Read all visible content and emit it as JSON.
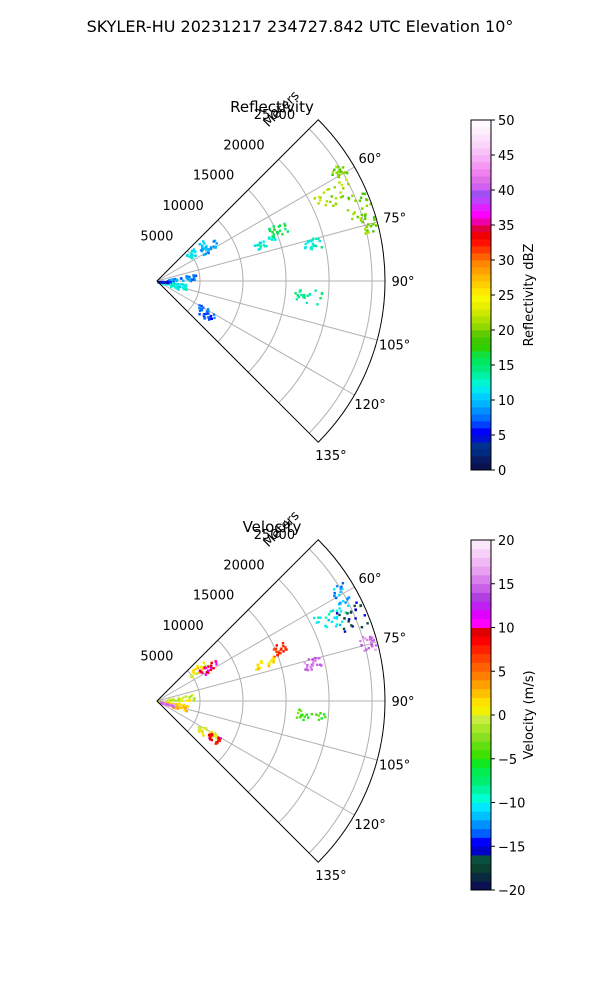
{
  "figure_title": "SKYLER-HU  20231217  234727.842 UTC Elevation 10°",
  "chart_data": [
    {
      "type": "heatmap",
      "title": "Reflectivity",
      "range_label": "Meters",
      "range_ticks": [
        "5000",
        "10000",
        "15000",
        "20000",
        "25000"
      ],
      "range_tick_values": [
        5000,
        10000,
        15000,
        20000,
        25000
      ],
      "range_max_m": 26500,
      "azimuth_range_deg": [
        45,
        135
      ],
      "azimuth_ticks": [
        "60°",
        "75°",
        "90°",
        "105°",
        "120°",
        "135°"
      ],
      "azimuth_tick_values": [
        60,
        75,
        90,
        105,
        120,
        135
      ],
      "grid": true,
      "colorbar": {
        "label": "Reflectivity dBZ",
        "ticks": [
          "0",
          "5",
          "10",
          "15",
          "20",
          "25",
          "30",
          "35",
          "40",
          "45",
          "50"
        ],
        "vmin": 0,
        "vmax": 50,
        "levels": 50,
        "colors": [
          "#0a1050",
          "#081a64",
          "#002a80",
          "#003090",
          "#0010d0",
          "#0000ff",
          "#0040ff",
          "#0070ff",
          "#0090ff",
          "#00b4ff",
          "#00cfff",
          "#00e8f0",
          "#00f5d0",
          "#00f0a8",
          "#00ea80",
          "#00e860",
          "#10e040",
          "#30d000",
          "#40c800",
          "#60cc00",
          "#90d800",
          "#b0e000",
          "#d0e800",
          "#e8f000",
          "#f8f800",
          "#ffe800",
          "#ffd000",
          "#ffb800",
          "#ffa000",
          "#ff8800",
          "#ff6000",
          "#ff3800",
          "#ff1000",
          "#f00000",
          "#e00040",
          "#ee00aa",
          "#ff00ff",
          "#e020ff",
          "#c040ff",
          "#a050f0",
          "#d060f0",
          "#e070e8",
          "#f080f0",
          "#f498f4",
          "#f6aef6",
          "#f8c2f8",
          "#fad4fa",
          "#fce2fc",
          "#fdf0fd",
          "#fff8ff"
        ]
      },
      "echo_regions": [
        {
          "az": [
            61,
            67
          ],
          "r": [
            20500,
            25000
          ],
          "value": 21
        },
        {
          "az": [
            66,
            72
          ],
          "r": [
            23500,
            26300
          ],
          "value": 20
        },
        {
          "az": [
            57,
            60
          ],
          "r": [
            23500,
            25500
          ],
          "value": 20
        },
        {
          "az": [
            72,
            77
          ],
          "r": [
            24500,
            26300
          ],
          "value": 20
        },
        {
          "az": [
            64,
            69
          ],
          "r": [
            14300,
            16200
          ],
          "value": 16
        },
        {
          "az": [
            47,
            55
          ],
          "r": [
            4500,
            7200
          ],
          "value": 11
        },
        {
          "az": [
            52,
            60
          ],
          "r": [
            6000,
            8500
          ],
          "value": 9
        },
        {
          "az": [
            78,
            88
          ],
          "r": [
            1000,
            4500
          ],
          "value": 8
        },
        {
          "az": [
            95,
            110
          ],
          "r": [
            0,
            3500
          ],
          "value": 12
        },
        {
          "az": [
            118,
            128
          ],
          "r": [
            5500,
            8000
          ],
          "value": 7
        },
        {
          "az": [
            88,
            96
          ],
          "r": [
            0,
            1500
          ],
          "value": 5
        },
        {
          "az": [
            93,
            98
          ],
          "r": [
            16000,
            19500
          ],
          "value": 14
        },
        {
          "az": [
            74,
            78
          ],
          "r": [
            17500,
            19500
          ],
          "value": 13
        },
        {
          "az": [
            68,
            72
          ],
          "r": [
            12000,
            14500
          ],
          "value": 12
        }
      ]
    },
    {
      "type": "heatmap",
      "title": "Velocity",
      "range_label": "Meters",
      "range_ticks": [
        "5000",
        "10000",
        "15000",
        "20000",
        "25000"
      ],
      "range_tick_values": [
        5000,
        10000,
        15000,
        20000,
        25000
      ],
      "range_max_m": 26500,
      "azimuth_range_deg": [
        45,
        135
      ],
      "azimuth_ticks": [
        "60°",
        "75°",
        "90°",
        "105°",
        "120°",
        "135°"
      ],
      "azimuth_tick_values": [
        60,
        75,
        90,
        105,
        120,
        135
      ],
      "grid": true,
      "colorbar": {
        "label": "Velocity (m/s)",
        "ticks": [
          "−20",
          "−15",
          "−10",
          "−5",
          "0",
          "5",
          "10",
          "15",
          "20"
        ],
        "vmin": -20,
        "vmax": 20,
        "levels": 40,
        "colors": [
          "#0a1050",
          "#0a2a40",
          "#0a4030",
          "#0a5040",
          "#0000c8",
          "#0000ff",
          "#0060ff",
          "#0090ff",
          "#00c0ff",
          "#00e8ff",
          "#00ffd0",
          "#00f5a0",
          "#00ee70",
          "#00ec50",
          "#10e820",
          "#40e000",
          "#60e010",
          "#88e020",
          "#a8e828",
          "#c8ec40",
          "#f0f000",
          "#ffe000",
          "#ffc000",
          "#ffa000",
          "#ff8000",
          "#ff6000",
          "#ff4000",
          "#ff2000",
          "#ff0000",
          "#e00000",
          "#ff00ff",
          "#e000ff",
          "#c020f0",
          "#b040e0",
          "#c860e8",
          "#d880ec",
          "#e8a0f0",
          "#f0b8f4",
          "#f6d0f8",
          "#fbe8fc"
        ]
      },
      "echo_regions": [
        {
          "az": [
            61,
            67
          ],
          "r": [
            20500,
            25000
          ],
          "value": -10
        },
        {
          "az": [
            57,
            62
          ],
          "r": [
            23500,
            25800
          ],
          "value": -12
        },
        {
          "az": [
            63,
            70
          ],
          "r": [
            23200,
            26300
          ],
          "value": -16
        },
        {
          "az": [
            72,
            77
          ],
          "r": [
            24500,
            26300
          ],
          "value": 15
        },
        {
          "az": [
            64,
            69
          ],
          "r": [
            14300,
            16200
          ],
          "value": 7
        },
        {
          "az": [
            47,
            55
          ],
          "r": [
            4500,
            7200
          ],
          "value": 1
        },
        {
          "az": [
            52,
            60
          ],
          "r": [
            6000,
            8500
          ],
          "value": 10
        },
        {
          "az": [
            78,
            88
          ],
          "r": [
            1000,
            4500
          ],
          "value": 0
        },
        {
          "az": [
            95,
            110
          ],
          "r": [
            0,
            3500
          ],
          "value": 2
        },
        {
          "az": [
            100,
            108
          ],
          "r": [
            0,
            2000
          ],
          "value": 15
        },
        {
          "az": [
            118,
            128
          ],
          "r": [
            5500,
            8000
          ],
          "value": 1
        },
        {
          "az": [
            120,
            126
          ],
          "r": [
            7000,
            8500
          ],
          "value": 9
        },
        {
          "az": [
            93,
            98
          ],
          "r": [
            16000,
            19500
          ],
          "value": -4
        },
        {
          "az": [
            74,
            78
          ],
          "r": [
            17500,
            19500
          ],
          "value": 15
        },
        {
          "az": [
            68,
            72
          ],
          "r": [
            12000,
            14500
          ],
          "value": 2
        }
      ]
    }
  ]
}
